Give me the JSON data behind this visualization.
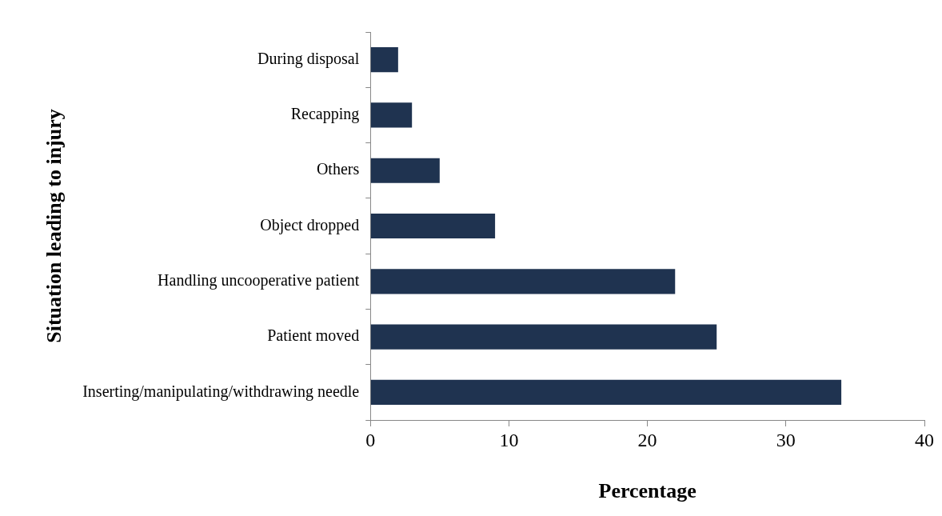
{
  "chart_data": {
    "type": "bar",
    "orientation": "horizontal",
    "xlabel": "Percentage",
    "ylabel": "Situation leading to injury",
    "categories": [
      "During disposal",
      "Recapping",
      "Others",
      "Object dropped",
      "Handling uncooperative patient",
      "Patient moved",
      "Inserting/manipulating/withdrawing needle"
    ],
    "values": [
      2,
      3,
      5,
      9,
      22,
      25,
      34
    ],
    "color": "#1f3350",
    "xlim": [
      0,
      40
    ],
    "xticks": [
      0,
      10,
      20,
      30,
      40
    ],
    "grid": false,
    "legend": false
  }
}
